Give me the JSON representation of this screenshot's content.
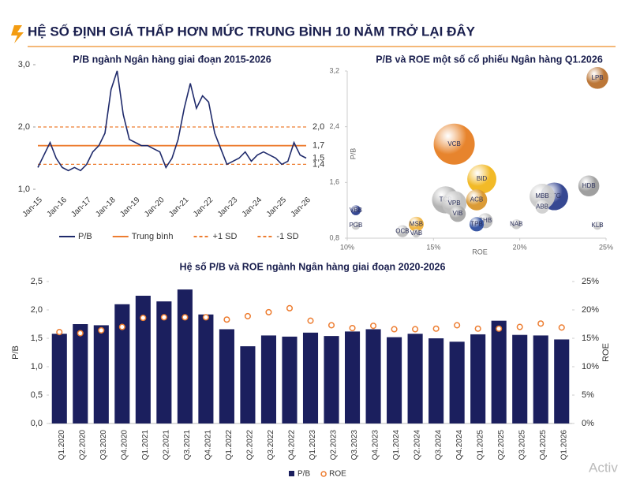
{
  "header": {
    "title": "HỆ SỐ ĐỊNH GIÁ THẤP HƠN MỨC TRUNG BÌNH 10 NĂM TRỞ LẠI ĐÂY"
  },
  "watermark": "Activ",
  "chart_data": [
    {
      "type": "line",
      "title": "P/B ngành Ngân hàng giai đoạn 2015-2026",
      "categories": [
        "Jan-15",
        null,
        null,
        null,
        "Jan-16",
        null,
        null,
        null,
        "Jan-17",
        null,
        null,
        null,
        "Jan-18",
        null,
        null,
        null,
        "Jan-19",
        null,
        null,
        null,
        "Jan-20",
        null,
        null,
        null,
        "Jan-21",
        null,
        null,
        null,
        "Jan-22",
        null,
        null,
        null,
        "Jan-23",
        null,
        null,
        null,
        "Jan-24",
        null,
        null,
        null,
        "Jan-25",
        null,
        null,
        null,
        "Jan-26"
      ],
      "series": [
        {
          "name": "P/B",
          "color": "#1f2a6b",
          "values": [
            1.35,
            1.55,
            1.75,
            1.5,
            1.35,
            1.3,
            1.35,
            1.3,
            1.4,
            1.6,
            1.7,
            1.9,
            2.6,
            2.9,
            2.2,
            1.8,
            1.75,
            1.7,
            1.7,
            1.65,
            1.6,
            1.35,
            1.5,
            1.8,
            2.3,
            2.7,
            2.3,
            2.5,
            2.4,
            1.9,
            1.65,
            1.4,
            1.45,
            1.5,
            1.6,
            1.45,
            1.55,
            1.6,
            1.55,
            1.5,
            1.4,
            1.45,
            1.75,
            1.55,
            1.5
          ]
        }
      ],
      "reference_lines": [
        {
          "name": "Trung bình",
          "value": 1.7,
          "label": "1,7",
          "color": "#ed7d31",
          "dashed": false
        },
        {
          "name": "+1 SD",
          "value": 2.0,
          "label": "2,0",
          "color": "#ed7d31",
          "dashed": true
        },
        {
          "name": "-1 SD",
          "value": 1.4,
          "label": "1,4",
          "color": "#ed7d31",
          "dashed": true
        }
      ],
      "end_label": {
        "value": 1.5,
        "label": "1,5"
      },
      "ylim": [
        1,
        3
      ],
      "yticks": [
        {
          "value": 1,
          "label": "1,0"
        },
        {
          "value": 2,
          "label": "2,0"
        },
        {
          "value": 3,
          "label": "3,0"
        }
      ]
    },
    {
      "type": "scatter",
      "title": "P/B và ROE một số cổ phiếu Ngân hàng Q1.2026",
      "x_label": "ROE",
      "y_label": "P/B",
      "xlim": [
        10,
        25
      ],
      "xticks": [
        {
          "value": 10,
          "label": "10%"
        },
        {
          "value": 15,
          "label": "15%"
        },
        {
          "value": 20,
          "label": "20%"
        },
        {
          "value": 25,
          "label": "25%"
        }
      ],
      "ylim": [
        0.8,
        3.2
      ],
      "yticks": [
        {
          "value": 0.8,
          "label": "0,8"
        },
        {
          "value": 1.6,
          "label": "1,6"
        },
        {
          "value": 2.4,
          "label": "2,4"
        },
        {
          "value": 3.2,
          "label": "3,2"
        }
      ],
      "points": [
        {
          "label": "VCB",
          "x": 16.2,
          "y": 2.15,
          "size": 100,
          "color": "#e67e22"
        },
        {
          "label": "BID",
          "x": 17.8,
          "y": 1.65,
          "size": 45,
          "color": "#f1b61c"
        },
        {
          "label": "CTG",
          "x": 22.0,
          "y": 1.4,
          "size": 40,
          "color": "#2c3e8c"
        },
        {
          "label": "TCB",
          "x": 15.7,
          "y": 1.35,
          "size": 38,
          "color": "#b0b0b0"
        },
        {
          "label": "MBB",
          "x": 21.3,
          "y": 1.4,
          "size": 32,
          "color": "#c8c8c8"
        },
        {
          "label": "VPB",
          "x": 16.2,
          "y": 1.3,
          "size": 30,
          "color": "#c0c0c0"
        },
        {
          "label": "LPB",
          "x": 24.5,
          "y": 3.1,
          "size": 22,
          "color": "#b8702e"
        },
        {
          "label": "HDB",
          "x": 24.0,
          "y": 1.55,
          "size": 20,
          "color": "#9a9a9a"
        },
        {
          "label": "ACB",
          "x": 17.5,
          "y": 1.35,
          "size": 20,
          "color": "#d9962b"
        },
        {
          "label": "VIB",
          "x": 16.4,
          "y": 1.15,
          "size": 10,
          "color": "#a8a8a8"
        },
        {
          "label": "ABB",
          "x": 21.3,
          "y": 1.25,
          "size": 6,
          "color": "#d0d0d0"
        },
        {
          "label": "SHB",
          "x": 18.0,
          "y": 1.05,
          "size": 8,
          "color": "#bdbdbd"
        },
        {
          "label": "TPB",
          "x": 17.5,
          "y": 1.0,
          "size": 7,
          "color": "#2f4fa0"
        },
        {
          "label": "MSB",
          "x": 14.0,
          "y": 1.0,
          "size": 8,
          "color": "#f0b23a"
        },
        {
          "label": "NAB",
          "x": 19.8,
          "y": 1.0,
          "size": 2,
          "color": "#c8c8c8"
        },
        {
          "label": "VBB",
          "x": 10.5,
          "y": 1.2,
          "size": 2,
          "color": "#2c3e8c"
        },
        {
          "label": "PGB",
          "x": 10.5,
          "y": 0.98,
          "size": 1,
          "color": "#c8c8c8"
        },
        {
          "label": "OCB",
          "x": 13.2,
          "y": 0.9,
          "size": 4,
          "color": "#bdbdbd"
        },
        {
          "label": "VAB",
          "x": 14.0,
          "y": 0.87,
          "size": 1,
          "color": "#c8c8c8"
        },
        {
          "label": "KLB",
          "x": 24.5,
          "y": 0.98,
          "size": 1,
          "color": "#c8c8c8"
        }
      ]
    },
    {
      "type": "bar",
      "title": "Hệ số P/B và ROE ngành Ngân hàng giai đoạn 2020-2026",
      "y_label": "P/B",
      "y2_label": "ROE",
      "categories": [
        "Q1.2020",
        "Q2.2020",
        "Q3.2020",
        "Q4.2020",
        "Q1.2021",
        "Q2.2021",
        "Q3.2021",
        "Q4.2021",
        "Q1.2022",
        "Q2.2022",
        "Q3.2022",
        "Q4.2022",
        "Q1.2023",
        "Q2.2023",
        "Q3.2023",
        "Q4.2023",
        "Q1.2024",
        "Q2.2024",
        "Q3.2024",
        "Q4.2024",
        "Q1.2025",
        "Q2.2025",
        "Q3.2025",
        "Q4.2025",
        "Q1.2026"
      ],
      "series": [
        {
          "name": "P/B",
          "color": "#1b1f5e",
          "values": [
            1.58,
            1.75,
            1.73,
            2.1,
            2.25,
            2.15,
            2.36,
            1.92,
            1.66,
            1.36,
            1.55,
            1.53,
            1.6,
            1.54,
            1.62,
            1.66,
            1.52,
            1.58,
            1.5,
            1.44,
            1.57,
            1.81,
            1.56,
            1.55,
            1.48
          ]
        },
        {
          "name": "ROE",
          "color": "#ed7d31",
          "axis": "y2",
          "values": [
            16.1,
            15.9,
            16.4,
            17.0,
            18.6,
            18.7,
            18.7,
            18.7,
            18.3,
            18.9,
            19.6,
            20.3,
            18.1,
            17.3,
            16.8,
            17.2,
            16.6,
            16.6,
            16.7,
            17.3,
            16.7,
            16.7,
            17.0,
            17.6,
            16.9
          ]
        }
      ],
      "ylim": [
        0,
        2.5
      ],
      "yticks": [
        {
          "value": 0,
          "label": "0,0"
        },
        {
          "value": 0.5,
          "label": "0,5"
        },
        {
          "value": 1,
          "label": "1,0"
        },
        {
          "value": 1.5,
          "label": "1,5"
        },
        {
          "value": 2,
          "label": "2,0"
        },
        {
          "value": 2.5,
          "label": "2,5"
        }
      ],
      "y2lim": [
        0,
        25
      ],
      "y2ticks": [
        {
          "value": 0,
          "label": "0%"
        },
        {
          "value": 5,
          "label": "5%"
        },
        {
          "value": 10,
          "label": "10%"
        },
        {
          "value": 15,
          "label": "15%"
        },
        {
          "value": 20,
          "label": "20%"
        },
        {
          "value": 25,
          "label": "25%"
        }
      ]
    }
  ]
}
